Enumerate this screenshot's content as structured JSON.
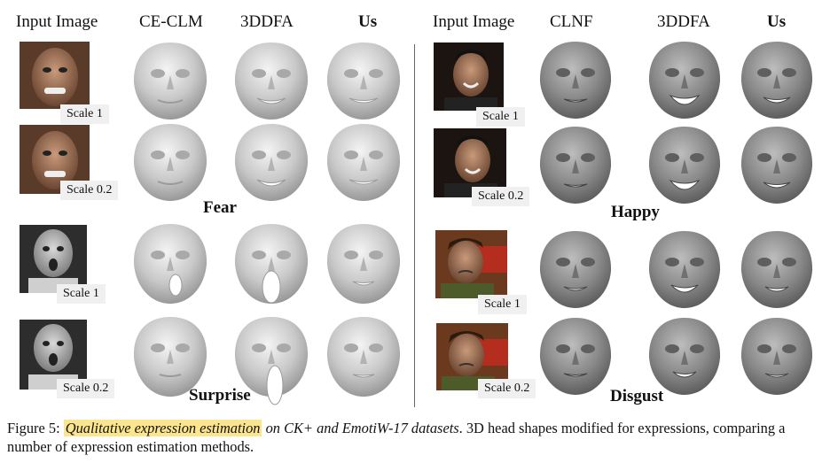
{
  "headers_left": [
    "Input Image",
    "CE-CLM",
    "3DDFA",
    "Us"
  ],
  "headers_right": [
    "Input Image",
    "CLNF",
    "3DDFA",
    "Us"
  ],
  "scale_labels": {
    "l1": "Scale 1",
    "l2": "Scale 0.2",
    "l3": "Scale 1",
    "l4": "Scale 0.2",
    "r1": "Scale 1",
    "r2": "Scale 0.2",
    "r3": "Scale 1",
    "r4": "Scale 0.2"
  },
  "expression_labels": {
    "fear": "Fear",
    "surprise": "Surprise",
    "happy": "Happy",
    "disgust": "Disgust"
  },
  "caption": {
    "prefix": "Figure 5: ",
    "highlight": "Qualitative expression estimation",
    "italic_rest": " on CK+ and EmotiW-17 datasets",
    "rest": ". 3D head shapes modified for expressions, comparing a number of expression estimation methods."
  }
}
